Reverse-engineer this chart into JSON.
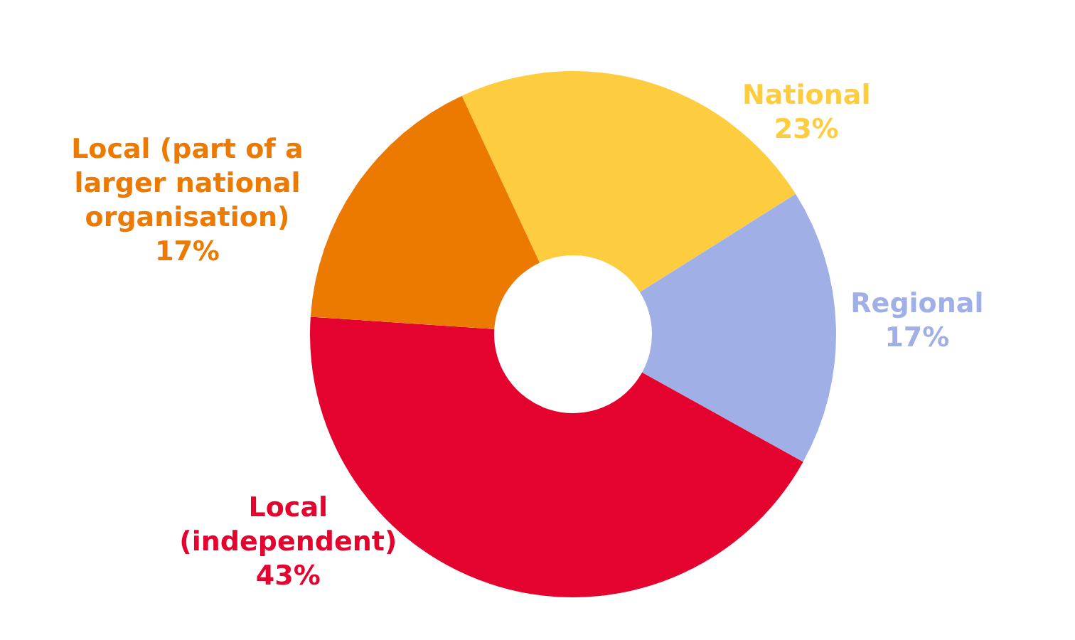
{
  "chart_data": {
    "type": "donut",
    "categories": [
      "National",
      "Regional",
      "Local (independent)",
      "Local (part of a larger national organisation)"
    ],
    "values": [
      23,
      17,
      43,
      17
    ],
    "value_labels": [
      "23%",
      "17%",
      "43%",
      "17%"
    ],
    "colors": [
      "#fecd3f",
      "#a0b0e6",
      "#e4032e",
      "#ec7a00"
    ]
  }
}
